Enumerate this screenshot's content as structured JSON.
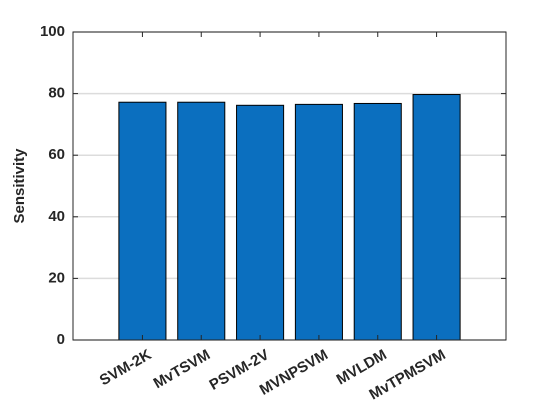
{
  "chart_data": {
    "type": "bar",
    "y_label": "Sensitivity",
    "categories": [
      "SVM-2K",
      "MvTSVM",
      "PSVM-2V",
      "MVNPSVM",
      "MVLDM",
      "MvTPMSVM"
    ],
    "values": [
      77.2,
      77.2,
      76.2,
      76.5,
      76.8,
      79.7
    ],
    "color": "#0b6fbf",
    "ylim": [
      0,
      100
    ],
    "yticks": [
      0,
      20,
      40,
      60,
      80,
      100
    ],
    "grid": true
  }
}
